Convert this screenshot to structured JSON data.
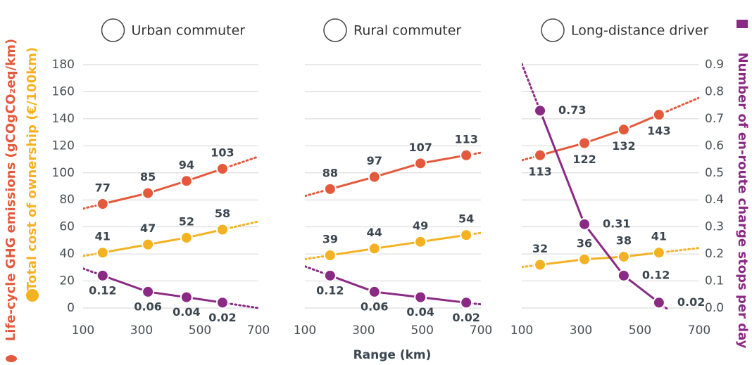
{
  "axes": {
    "ylabel": "Life-cycle GHG emissions (gCOgCO₂eq/km)",
    "ylabel2": "Total cost of ownership (€/100km)",
    "y2label": "Number of en-route charge stops per day",
    "xlabel": "Range (km)",
    "ylim": [
      0,
      180
    ],
    "yticks": [
      0,
      20,
      40,
      60,
      80,
      100,
      120,
      140,
      160,
      180
    ],
    "y2lim": [
      0,
      0.9
    ],
    "y2ticks": [
      {
        "value": 0,
        "label": "0.0"
      },
      0.1,
      0.2,
      0.3,
      0.4,
      0.5,
      0.6,
      0.7,
      0.8,
      0.9
    ]
  },
  "chart_data": [
    {
      "type": "line",
      "title": "Urban commuter",
      "xlim": [
        100,
        700
      ],
      "xticks": [
        100,
        300,
        500,
        700
      ],
      "x": [
        167,
        322,
        454,
        577
      ],
      "series": [
        {
          "name": "Life-cycle GHG emissions",
          "color": "#e4593b",
          "values": [
            77,
            85,
            94,
            103
          ]
        },
        {
          "name": "Total cost of ownership",
          "color": "#f4b223",
          "values": [
            41,
            47,
            52,
            58
          ]
        },
        {
          "name": "Number of en-route charge stops per day",
          "color": "#8a2a84",
          "axis": "y2",
          "values": [
            0.12,
            0.06,
            0.04,
            0.02
          ]
        }
      ]
    },
    {
      "type": "line",
      "title": "Rural commuter",
      "xlim": [
        100,
        700
      ],
      "xticks": [
        100,
        300,
        500,
        700
      ],
      "x": [
        186,
        337,
        494,
        650
      ],
      "series": [
        {
          "name": "Life-cycle GHG emissions",
          "color": "#e4593b",
          "values": [
            88,
            97,
            107,
            113
          ]
        },
        {
          "name": "Total cost of ownership",
          "color": "#f4b223",
          "values": [
            39,
            44,
            49,
            54
          ]
        },
        {
          "name": "Number of en-route charge stops per day",
          "color": "#8a2a84",
          "axis": "y2",
          "values": [
            0.12,
            0.06,
            0.04,
            0.02
          ]
        }
      ]
    },
    {
      "type": "line",
      "title": "Long-distance driver",
      "xlim": [
        100,
        700
      ],
      "xticks": [
        100,
        300,
        500,
        700
      ],
      "x": [
        162,
        312,
        445,
        564
      ],
      "series": [
        {
          "name": "Life-cycle GHG emissions",
          "color": "#e4593b",
          "values": [
            113,
            122,
            132,
            143
          ]
        },
        {
          "name": "Total cost of ownership",
          "color": "#f4b223",
          "values": [
            32,
            36,
            38,
            41
          ]
        },
        {
          "name": "Number of en-route charge stops per day",
          "color": "#8a2a84",
          "axis": "y2",
          "values": [
            0.73,
            0.31,
            0.12,
            0.02
          ]
        }
      ]
    }
  ]
}
